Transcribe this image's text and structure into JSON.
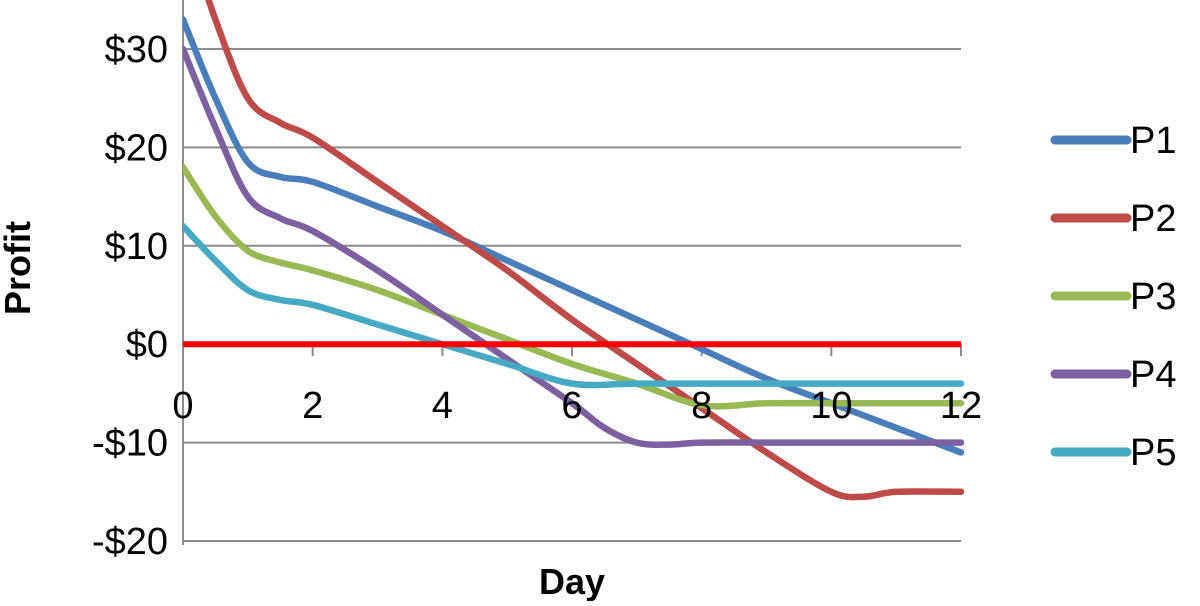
{
  "chart_data": {
    "type": "line",
    "title": "",
    "xlabel": "Day",
    "ylabel": "Profit",
    "xlim": [
      0,
      12
    ],
    "ylim": [
      -20,
      35
    ],
    "x_ticks": [
      0,
      2,
      4,
      6,
      8,
      10,
      12
    ],
    "x_tick_labels": [
      "0",
      "2",
      "4",
      "6",
      "8",
      "10",
      "12"
    ],
    "y_ticks": [
      30,
      20,
      10,
      0,
      -10,
      -20
    ],
    "y_tick_labels": [
      "$30",
      "$20",
      "$10",
      "$0",
      "-$10",
      "-$20"
    ],
    "grid": "horizontal",
    "legend_position": "right",
    "zero_line": {
      "y": 0,
      "color": "#ff0000"
    },
    "series": [
      {
        "name": "P1",
        "color": "#4a7ebb",
        "x": [
          0,
          0.5,
          1,
          1.5,
          2,
          3,
          4,
          5,
          6,
          7,
          8,
          9,
          10,
          11,
          12
        ],
        "y": [
          33,
          25,
          18.5,
          17,
          16.5,
          14,
          11.5,
          8.5,
          5.5,
          2.5,
          -0.5,
          -3.5,
          -6,
          -8.5,
          -11
        ]
      },
      {
        "name": "P2",
        "color": "#be4b48",
        "x": [
          0,
          0.5,
          1,
          1.5,
          2,
          3,
          4,
          5,
          6,
          7,
          8,
          9,
          10,
          10.5,
          11,
          12
        ],
        "y": [
          43,
          33,
          25,
          22.5,
          21,
          16.5,
          12,
          7.5,
          2.5,
          -2,
          -6.5,
          -11,
          -15,
          -15.5,
          -15,
          -15
        ]
      },
      {
        "name": "P3",
        "color": "#98b954",
        "x": [
          0,
          0.5,
          1,
          1.5,
          2,
          3,
          4,
          5,
          6,
          7,
          8,
          9,
          10,
          11,
          12
        ],
        "y": [
          18,
          13,
          9.5,
          8.3,
          7.5,
          5.5,
          3,
          0.5,
          -2,
          -4,
          -6.2,
          -6,
          -6,
          -6,
          -6
        ]
      },
      {
        "name": "P4",
        "color": "#7d60a0",
        "x": [
          0,
          0.5,
          1,
          1.5,
          2,
          3,
          4,
          5,
          6,
          6.5,
          7,
          7.5,
          8,
          9,
          10,
          11,
          12
        ],
        "y": [
          30,
          22,
          15,
          12.8,
          11.5,
          7.5,
          3,
          -1.5,
          -6,
          -8.5,
          -10,
          -10.2,
          -10,
          -10,
          -10,
          -10,
          -10
        ]
      },
      {
        "name": "P5",
        "color": "#46aac5",
        "x": [
          0,
          0.5,
          1,
          1.5,
          2,
          3,
          4,
          5,
          6,
          7,
          8,
          9,
          10,
          11,
          12
        ],
        "y": [
          12,
          8.5,
          5.5,
          4.5,
          4,
          2,
          0,
          -2,
          -4,
          -4,
          -4,
          -4,
          -4,
          -4,
          -4
        ]
      }
    ]
  }
}
